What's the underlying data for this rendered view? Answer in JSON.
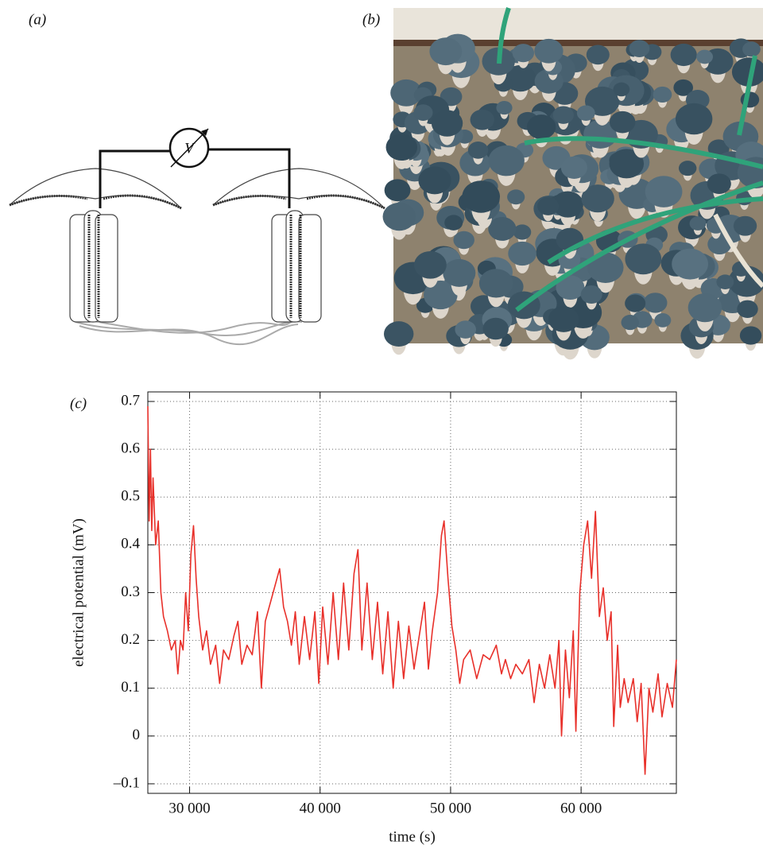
{
  "panel_labels": [
    "(a)",
    "(b)",
    "(c)"
  ],
  "diagram": {
    "voltmeter_label": "V"
  },
  "chart_data": {
    "type": "line",
    "x_label": "time (s)",
    "y_label": "electrical potential (mV)",
    "x": [
      26800,
      26900,
      27000,
      27100,
      27200,
      27400,
      27600,
      27800,
      28000,
      28300,
      28600,
      28900,
      29100,
      29300,
      29500,
      29700,
      29900,
      30100,
      30300,
      30500,
      30700,
      31000,
      31300,
      31600,
      32000,
      32300,
      32600,
      33000,
      33400,
      33700,
      34000,
      34400,
      34800,
      35200,
      35500,
      35800,
      36200,
      36600,
      36900,
      37200,
      37500,
      37800,
      38100,
      38400,
      38800,
      39200,
      39600,
      39900,
      40200,
      40600,
      41000,
      41400,
      41800,
      42200,
      42600,
      42900,
      43200,
      43600,
      44000,
      44400,
      44800,
      45200,
      45600,
      46000,
      46400,
      46800,
      47200,
      47600,
      48000,
      48300,
      48600,
      49000,
      49300,
      49500,
      49800,
      50100,
      50400,
      50700,
      51000,
      51500,
      52000,
      52500,
      53000,
      53500,
      53900,
      54200,
      54600,
      55000,
      55500,
      56000,
      56400,
      56800,
      57200,
      57600,
      58000,
      58300,
      58500,
      58800,
      59100,
      59400,
      59600,
      59900,
      60200,
      60500,
      60800,
      61100,
      61400,
      61700,
      62000,
      62300,
      62500,
      62800,
      63000,
      63300,
      63600,
      64000,
      64300,
      64600,
      64900,
      65200,
      65500,
      65900,
      66200,
      66600,
      67000,
      67300
    ],
    "series": [
      {
        "name": "potential",
        "color": "#e8302a",
        "values": [
          0.69,
          0.45,
          0.6,
          0.43,
          0.54,
          0.4,
          0.45,
          0.3,
          0.25,
          0.22,
          0.18,
          0.2,
          0.13,
          0.2,
          0.18,
          0.3,
          0.22,
          0.38,
          0.44,
          0.33,
          0.25,
          0.18,
          0.22,
          0.15,
          0.19,
          0.11,
          0.18,
          0.16,
          0.21,
          0.24,
          0.15,
          0.19,
          0.17,
          0.26,
          0.1,
          0.24,
          0.28,
          0.32,
          0.35,
          0.27,
          0.24,
          0.19,
          0.26,
          0.15,
          0.25,
          0.16,
          0.26,
          0.11,
          0.27,
          0.15,
          0.3,
          0.16,
          0.32,
          0.18,
          0.34,
          0.39,
          0.18,
          0.32,
          0.16,
          0.28,
          0.13,
          0.26,
          0.1,
          0.24,
          0.12,
          0.23,
          0.14,
          0.21,
          0.28,
          0.14,
          0.22,
          0.3,
          0.42,
          0.45,
          0.33,
          0.23,
          0.18,
          0.11,
          0.16,
          0.18,
          0.12,
          0.17,
          0.16,
          0.19,
          0.13,
          0.16,
          0.12,
          0.15,
          0.13,
          0.16,
          0.07,
          0.15,
          0.1,
          0.17,
          0.1,
          0.2,
          0.0,
          0.18,
          0.08,
          0.22,
          0.01,
          0.3,
          0.4,
          0.45,
          0.33,
          0.47,
          0.25,
          0.31,
          0.2,
          0.26,
          0.02,
          0.19,
          0.06,
          0.12,
          0.07,
          0.12,
          0.03,
          0.11,
          -0.08,
          0.1,
          0.05,
          0.13,
          0.04,
          0.11,
          0.06,
          0.16
        ]
      }
    ],
    "xlim": [
      26800,
      67300
    ],
    "ylim": [
      -0.12,
      0.72
    ],
    "xticks": [
      {
        "value": 30000,
        "label": "30 000"
      },
      {
        "value": 40000,
        "label": "40 000"
      },
      {
        "value": 50000,
        "label": "50 000"
      },
      {
        "value": 60000,
        "label": "60 000"
      }
    ],
    "yticks": [
      {
        "value": -0.1,
        "label": "–0.1"
      },
      0,
      0.1,
      0.2,
      0.3,
      0.4,
      0.5,
      0.6,
      0.7
    ],
    "grid": true
  }
}
